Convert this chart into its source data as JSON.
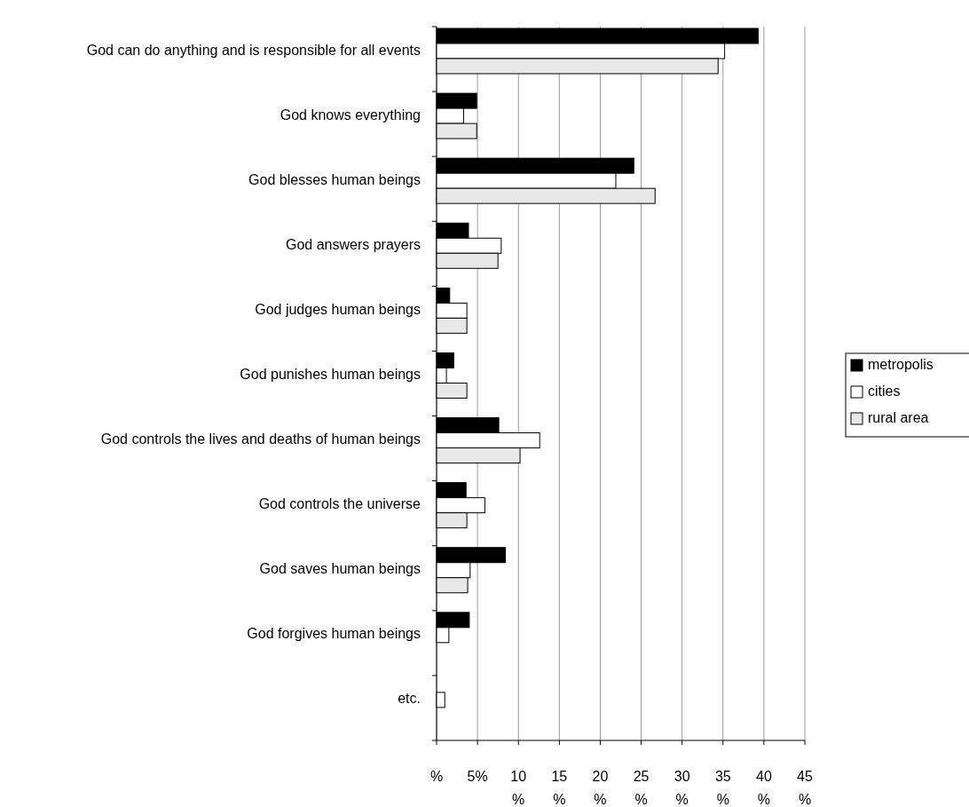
{
  "chart_data": {
    "type": "bar",
    "orientation": "horizontal",
    "categories": [
      "God can do anything and is responsible for all events",
      "God knows everything",
      "God blesses human beings",
      "God answers prayers",
      "God judges human beings",
      "God punishes human beings",
      "God controls the lives and deaths of human beings",
      "God controls the universe",
      "God saves human beings",
      "God forgives human beings",
      "etc."
    ],
    "series": [
      {
        "name": "metropolis",
        "color": "#000000",
        "values": [
          39.3,
          4.9,
          24.1,
          3.9,
          1.6,
          2.1,
          7.6,
          3.6,
          8.4,
          4.0,
          0
        ]
      },
      {
        "name": "cities",
        "color": "#ffffff",
        "values": [
          35.2,
          3.3,
          21.9,
          7.9,
          3.7,
          1.2,
          12.6,
          5.9,
          4.1,
          1.5,
          1.0
        ]
      },
      {
        "name": "rural area",
        "color": "#e8e8e8",
        "values": [
          34.4,
          4.9,
          26.7,
          7.5,
          3.7,
          3.7,
          10.2,
          3.7,
          3.8,
          0,
          0
        ]
      }
    ],
    "xlim": [
      0,
      45
    ],
    "xticks": [
      {
        "value": 0,
        "label": "%"
      },
      "5%",
      {
        "value": 10,
        "label": "10 %"
      },
      {
        "value": 15,
        "label": "15 %"
      },
      {
        "value": 20,
        "label": "20 %"
      },
      {
        "value": 25,
        "label": "25 %"
      },
      {
        "value": 30,
        "label": "30 %"
      },
      {
        "value": 35,
        "label": "35 %"
      },
      {
        "value": 40,
        "label": "40 %"
      },
      {
        "value": 45,
        "label": "45 %"
      }
    ],
    "grid": "x",
    "legend": "right"
  }
}
